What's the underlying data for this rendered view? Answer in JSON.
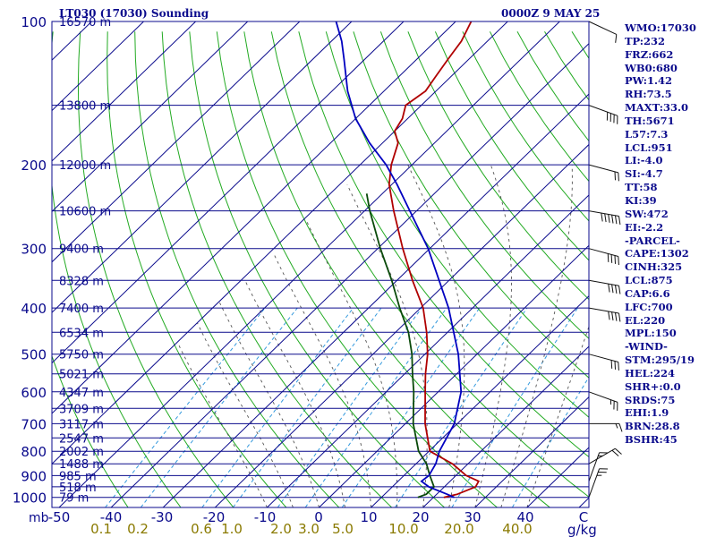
{
  "header": {
    "station_title": "LT030 (17030) Sounding",
    "time_label": "0000Z  9 MAY 25"
  },
  "chart_data": {
    "type": "line",
    "title": "LT030 (17030) Sounding",
    "ylabel": "mb",
    "xlabel": "C",
    "mixing_ratio_unit": "g/kg",
    "y_scale": "log",
    "ylim": [
      1000,
      100
    ],
    "xlim": [
      -50,
      50
    ],
    "pressure_ticks": [
      100,
      200,
      300,
      400,
      500,
      600,
      700,
      800,
      900,
      1000
    ],
    "temperature_ticks": [
      "-50",
      "-40",
      "-30",
      "-20",
      "-10",
      "0",
      "10",
      "20",
      "30",
      "40",
      "C"
    ],
    "mixing_ratio_ticks": [
      "0.1",
      "0.2",
      "0.6",
      "1.0",
      "2.0",
      "3.0",
      "5.0",
      "10.0",
      "20.0",
      "40.0"
    ],
    "height_levels": [
      {
        "p": 100,
        "label": "16570 m"
      },
      {
        "p": 150,
        "label": "13800 m"
      },
      {
        "p": 200,
        "label": "12000 m"
      },
      {
        "p": 250,
        "label": "10600 m"
      },
      {
        "p": 300,
        "label": "9400 m"
      },
      {
        "p": 350,
        "label": "8328 m"
      },
      {
        "p": 400,
        "label": "7400 m"
      },
      {
        "p": 450,
        "label": "6534 m"
      },
      {
        "p": 500,
        "label": "5750 m"
      },
      {
        "p": 550,
        "label": "5021 m"
      },
      {
        "p": 600,
        "label": "4347 m"
      },
      {
        "p": 650,
        "label": "3709 m"
      },
      {
        "p": 700,
        "label": "3117 m"
      },
      {
        "p": 750,
        "label": "2547 m"
      },
      {
        "p": 800,
        "label": "2002 m"
      },
      {
        "p": 850,
        "label": "1488 m"
      },
      {
        "p": 900,
        "label": "985 m"
      },
      {
        "p": 950,
        "label": "518 m"
      },
      {
        "p": 1000,
        "label": "79 m"
      }
    ],
    "series": [
      {
        "name": "temperature",
        "color": "#b00000",
        "points": [
          [
            1000,
            22
          ],
          [
            985,
            24
          ],
          [
            950,
            26
          ],
          [
            925,
            25.5
          ],
          [
            900,
            22
          ],
          [
            850,
            17
          ],
          [
            800,
            10.2
          ],
          [
            700,
            3.8
          ],
          [
            600,
            -2.5
          ],
          [
            550,
            -6
          ],
          [
            500,
            -9.5
          ],
          [
            450,
            -14
          ],
          [
            400,
            -19.5
          ],
          [
            350,
            -27
          ],
          [
            300,
            -35.2
          ],
          [
            250,
            -44.4
          ],
          [
            220,
            -50.5
          ],
          [
            200,
            -54
          ],
          [
            180,
            -57
          ],
          [
            170,
            -60
          ],
          [
            160,
            -61
          ],
          [
            150,
            -63
          ],
          [
            140,
            -62
          ],
          [
            130,
            -63
          ],
          [
            120,
            -64
          ],
          [
            110,
            -65
          ],
          [
            100,
            -67
          ]
        ]
      },
      {
        "name": "dewpoint",
        "color": "#0a4a0a",
        "points": [
          [
            1000,
            17
          ],
          [
            985,
            18
          ],
          [
            950,
            18
          ],
          [
            900,
            15
          ],
          [
            850,
            12
          ],
          [
            800,
            8
          ],
          [
            700,
            1.5
          ],
          [
            600,
            -4.7
          ],
          [
            550,
            -8.5
          ],
          [
            500,
            -12.5
          ],
          [
            450,
            -17.5
          ],
          [
            400,
            -24
          ],
          [
            350,
            -31
          ],
          [
            300,
            -39.5
          ],
          [
            250,
            -49
          ],
          [
            230,
            -53
          ]
        ]
      },
      {
        "name": "parcel",
        "color": "#0000c0",
        "points": [
          [
            1000,
            24
          ],
          [
            985,
            22
          ],
          [
            950,
            17
          ],
          [
            925,
            14.5
          ],
          [
            900,
            14.8
          ],
          [
            850,
            13.8
          ],
          [
            800,
            12
          ],
          [
            700,
            9.4
          ],
          [
            600,
            4.4
          ],
          [
            500,
            -3.6
          ],
          [
            400,
            -14.6
          ],
          [
            300,
            -30.3
          ],
          [
            250,
            -41.3
          ],
          [
            220,
            -49
          ],
          [
            200,
            -55
          ],
          [
            180,
            -62.5
          ],
          [
            160,
            -70
          ],
          [
            140,
            -77
          ],
          [
            120,
            -84
          ],
          [
            110,
            -88
          ],
          [
            100,
            -93
          ]
        ]
      }
    ],
    "wind_barbs": [
      {
        "p": 100,
        "dir": 295,
        "kt": 10
      },
      {
        "p": 150,
        "dir": 290,
        "kt": 40
      },
      {
        "p": 200,
        "dir": 285,
        "kt": 20
      },
      {
        "p": 250,
        "dir": 280,
        "kt": 60
      },
      {
        "p": 300,
        "dir": 285,
        "kt": 40
      },
      {
        "p": 350,
        "dir": 280,
        "kt": 40
      },
      {
        "p": 400,
        "dir": 280,
        "kt": 40
      },
      {
        "p": 500,
        "dir": 285,
        "kt": 30
      },
      {
        "p": 600,
        "dir": 290,
        "kt": 25
      },
      {
        "p": 700,
        "dir": 270,
        "kt": 15
      },
      {
        "p": 850,
        "dir": 240,
        "kt": 20
      },
      {
        "p": 925,
        "dir": 200,
        "kt": 15
      },
      {
        "p": 1000,
        "dir": 200,
        "kt": 25
      }
    ]
  },
  "indices": [
    "WMO:17030",
    "TP:232",
    "FRZ:662",
    "WB0:680",
    "PW:1.42",
    "RH:73.5",
    "MAXT:33.0",
    "TH:5671",
    "L57:7.3",
    "LCL:951",
    "LI:-4.0",
    "SI:-4.7",
    "TT:58",
    "KI:39",
    "SW:472",
    "EI:-2.2",
    "-PARCEL-",
    "CAPE:1302",
    "CINH:325",
    "LCL:875",
    "CAP:6.6",
    "LFC:700",
    "EL:220",
    "MPL:150",
    "-WIND-",
    "STM:295/19",
    "HEL:224",
    "SHR+:0.0",
    "SRDS:75",
    "EHI:1.9",
    "BRN:28.8",
    "BSHR:45"
  ],
  "colors": {
    "isobar": "#0a0a8c",
    "isotherm": "#0a0a8c",
    "dry_adiabat": "#22aa22",
    "moist_adiabat": "#555555",
    "mixing_ratio": "#3399dd",
    "tick_text": "#0a0a8c",
    "mr_text": "#8a7a00"
  }
}
